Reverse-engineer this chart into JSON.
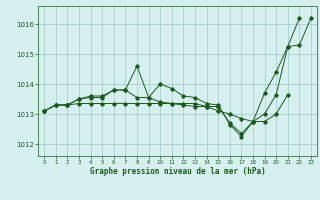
{
  "title": "Graphe pression niveau de la mer (hPa)",
  "background_color": "#d6f0f0",
  "line_color": "#1a5c1a",
  "grid_color": "#a0c8c8",
  "xlim": [
    -0.5,
    23.5
  ],
  "ylim": [
    1011.6,
    1016.6
  ],
  "yticks": [
    1012,
    1013,
    1014,
    1015,
    1016
  ],
  "xticks": [
    0,
    1,
    2,
    3,
    4,
    5,
    6,
    7,
    8,
    9,
    10,
    11,
    12,
    13,
    14,
    15,
    16,
    17,
    18,
    19,
    20,
    21,
    22,
    23
  ],
  "series": [
    {
      "x": [
        0,
        1,
        2,
        3,
        4,
        5,
        6,
        7,
        8,
        9,
        10,
        11,
        12,
        13,
        14,
        15,
        16,
        17,
        18,
        19,
        20,
        21,
        22,
        23
      ],
      "y": [
        1013.1,
        1013.3,
        1013.3,
        1013.5,
        1013.6,
        1013.6,
        1013.8,
        1013.8,
        1014.6,
        1013.55,
        1014.0,
        1013.85,
        1013.6,
        1013.55,
        1013.35,
        1013.3,
        1012.65,
        1012.25,
        1012.75,
        1013.7,
        1014.4,
        1015.25,
        1015.3,
        1016.2
      ]
    },
    {
      "x": [
        0,
        1,
        2,
        3,
        4,
        5,
        6,
        7,
        8,
        9,
        10,
        11,
        12,
        13,
        14,
        15,
        16,
        17,
        18,
        19,
        20,
        21,
        22
      ],
      "y": [
        1013.1,
        1013.3,
        1013.3,
        1013.5,
        1013.55,
        1013.55,
        1013.8,
        1013.8,
        1013.55,
        1013.55,
        1013.4,
        1013.35,
        1013.3,
        1013.25,
        1013.25,
        1013.25,
        1012.7,
        1012.35,
        1012.75,
        1013.0,
        1013.65,
        1015.25,
        1016.2
      ]
    },
    {
      "x": [
        0,
        1,
        2,
        3,
        4,
        5,
        6,
        7,
        8,
        9,
        10,
        11,
        12,
        13,
        14,
        15,
        16,
        17,
        18,
        19,
        20,
        21
      ],
      "y": [
        1013.1,
        1013.3,
        1013.3,
        1013.35,
        1013.35,
        1013.35,
        1013.35,
        1013.35,
        1013.35,
        1013.35,
        1013.35,
        1013.35,
        1013.35,
        1013.35,
        1013.25,
        1013.1,
        1013.0,
        1012.85,
        1012.75,
        1012.75,
        1013.0,
        1013.65
      ]
    }
  ]
}
